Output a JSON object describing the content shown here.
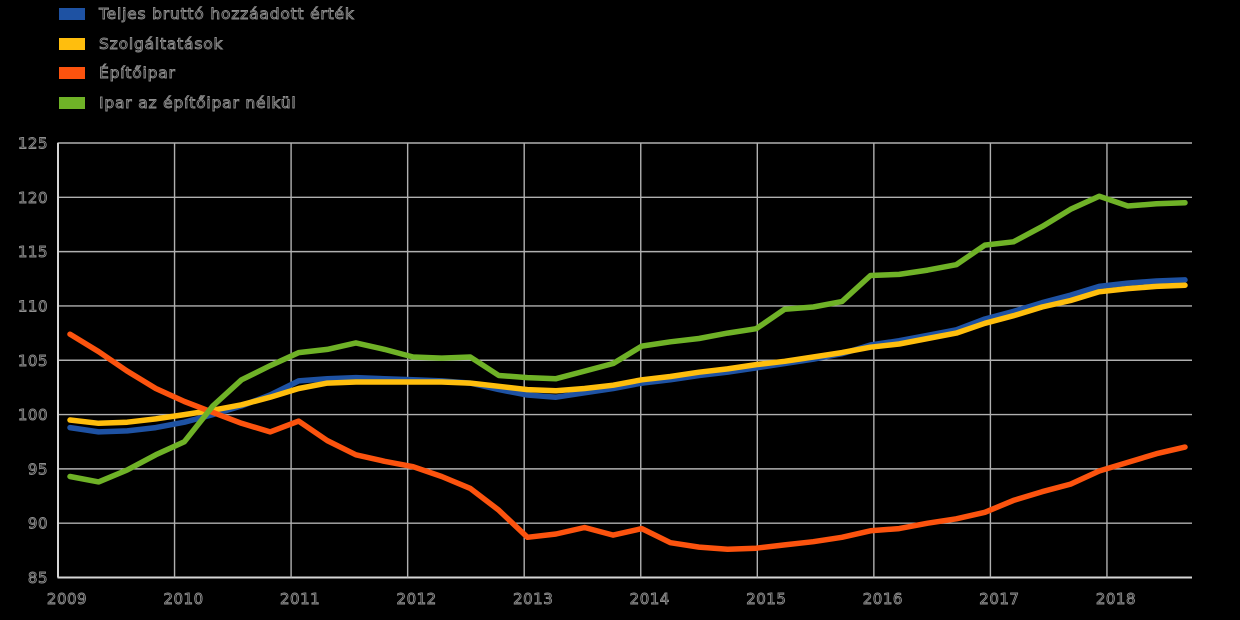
{
  "legend": {
    "items": [
      {
        "label": "Teljes bruttó hozzáadott érték",
        "color": "#1e52a3"
      },
      {
        "label": "Szolgáltatások",
        "color": "#ffbe0d"
      },
      {
        "label": "Építőipar",
        "color": "#fc530e"
      },
      {
        "label": "Ipar az építőipar nélkül",
        "color": "#6fb227"
      }
    ]
  },
  "chart_data": {
    "type": "line",
    "title": "",
    "xlabel": "",
    "ylabel": "",
    "background_color": "#000000",
    "grid": true,
    "grid_color": "#b0b0b0",
    "text_color": "#8f8f8f",
    "legend_position": "top-left",
    "x_unit": "quarterly, 2009 Q1 – 2018 Q4",
    "x_tick_labels": [
      "2009",
      "2010",
      "2011",
      "2012",
      "2013",
      "2014",
      "2015",
      "2016",
      "2017",
      "2018"
    ],
    "y_tick_labels": [
      "85",
      "90",
      "95",
      "100",
      "105",
      "110",
      "115",
      "120",
      "125"
    ],
    "ylim": [
      85,
      125
    ],
    "series": [
      {
        "name": "Teljes bruttó hozzáadott érték",
        "color": "#1e52a3",
        "values": [
          98.8,
          98.4,
          98.5,
          98.8,
          99.3,
          100.0,
          100.8,
          101.8,
          103.1,
          103.3,
          103.4,
          103.3,
          103.2,
          103.1,
          102.9,
          102.3,
          101.8,
          101.6,
          102.0,
          102.4,
          102.9,
          103.2,
          103.6,
          103.9,
          104.3,
          104.7,
          105.1,
          105.6,
          106.4,
          106.8,
          107.3,
          107.8,
          108.8,
          109.5,
          110.3,
          111.0,
          111.8,
          112.1,
          112.3,
          112.4
        ]
      },
      {
        "name": "Szolgáltatások",
        "color": "#ffbe0d",
        "values": [
          99.5,
          99.2,
          99.3,
          99.6,
          100.0,
          100.4,
          100.9,
          101.6,
          102.4,
          102.9,
          103.0,
          103.0,
          103.0,
          103.0,
          102.9,
          102.6,
          102.3,
          102.2,
          102.4,
          102.7,
          103.2,
          103.5,
          103.9,
          104.2,
          104.6,
          104.9,
          105.3,
          105.7,
          106.2,
          106.5,
          107.0,
          107.5,
          108.4,
          109.1,
          109.9,
          110.5,
          111.3,
          111.6,
          111.8,
          111.9
        ]
      },
      {
        "name": "Építőipar",
        "color": "#fc530e",
        "values": [
          107.4,
          105.8,
          104.0,
          102.4,
          101.2,
          100.2,
          99.2,
          98.4,
          99.4,
          97.6,
          96.3,
          95.7,
          95.2,
          94.3,
          93.2,
          91.2,
          88.7,
          89.0,
          89.6,
          88.9,
          89.5,
          88.2,
          87.8,
          87.6,
          87.7,
          88.0,
          88.3,
          88.7,
          89.3,
          89.5,
          90.0,
          90.4,
          91.0,
          92.1,
          92.9,
          93.6,
          94.8,
          95.6,
          96.4,
          97.0
        ]
      },
      {
        "name": "Ipar az építőipar nélkül",
        "color": "#6fb227",
        "values": [
          94.3,
          93.8,
          94.9,
          96.3,
          97.5,
          100.8,
          103.2,
          104.5,
          105.7,
          106.0,
          106.6,
          106.0,
          105.3,
          105.2,
          105.3,
          103.6,
          103.4,
          103.3,
          104.0,
          104.7,
          106.3,
          106.7,
          107.0,
          107.5,
          107.9,
          109.7,
          109.9,
          110.4,
          112.8,
          112.9,
          113.3,
          113.8,
          115.6,
          115.9,
          117.3,
          118.9,
          120.1,
          119.2,
          119.4,
          119.5
        ]
      }
    ]
  }
}
